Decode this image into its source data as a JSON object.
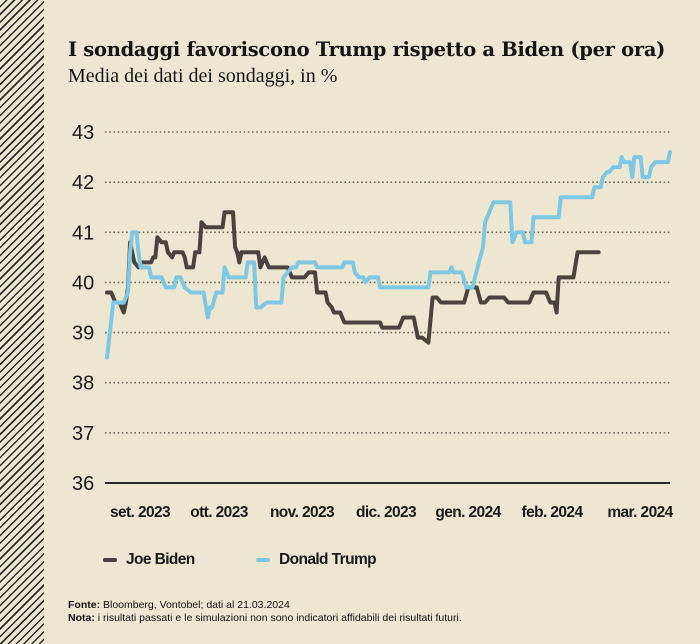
{
  "chart_data": {
    "type": "line",
    "title": "I sondaggi favoriscono Trump rispetto a Biden (per ora)",
    "subtitle": "Media dei dati dei sondaggi, in %",
    "xlabel": "",
    "ylabel": "",
    "ylim": [
      36,
      43
    ],
    "yticks": [
      "43",
      "42",
      "41",
      "40",
      "39",
      "38",
      "37",
      "36"
    ],
    "ytick_values": [
      43,
      42,
      41,
      40,
      39,
      38,
      37,
      36
    ],
    "x_unit": "days since 2023-09-01",
    "xlim": [
      0,
      206
    ],
    "xticks": [
      {
        "label": "set. 2023",
        "day": 12
      },
      {
        "label": "ott. 2023",
        "day": 41
      },
      {
        "label": "nov. 2023",
        "day": 71
      },
      {
        "label": "dic. 2023",
        "day": 102
      },
      {
        "label": "gen. 2024",
        "day": 132
      },
      {
        "label": "feb. 2024",
        "day": 163
      },
      {
        "label": "mar. 2024",
        "day": 195
      }
    ],
    "grid": "horizontal-dotted",
    "legend_position": "bottom-left",
    "series": [
      {
        "name": "Joe Biden",
        "color": "#4a4340",
        "points": [
          [
            0,
            39.8
          ],
          [
            2,
            39.8
          ],
          [
            3,
            39.7
          ],
          [
            4,
            39.6
          ],
          [
            6,
            39.6
          ],
          [
            8,
            39.4
          ],
          [
            9,
            39.6
          ],
          [
            10,
            39.9
          ],
          [
            11,
            40.8
          ],
          [
            12,
            40.6
          ],
          [
            13,
            40.4
          ],
          [
            15,
            40.3
          ],
          [
            16,
            40.4
          ],
          [
            21,
            40.4
          ],
          [
            22,
            40.5
          ],
          [
            23,
            40.5
          ],
          [
            24,
            40.9
          ],
          [
            26,
            40.8
          ],
          [
            28,
            40.8
          ],
          [
            29,
            40.6
          ],
          [
            31,
            40.5
          ],
          [
            32,
            40.6
          ],
          [
            36,
            40.6
          ],
          [
            37,
            40.5
          ],
          [
            38,
            40.3
          ],
          [
            41,
            40.3
          ],
          [
            42,
            40.6
          ],
          [
            44,
            40.6
          ],
          [
            45,
            41.2
          ],
          [
            47,
            41.1
          ],
          [
            55,
            41.1
          ],
          [
            56,
            41.4
          ],
          [
            60,
            41.4
          ],
          [
            61,
            40.7
          ],
          [
            62,
            40.6
          ],
          [
            63,
            40.4
          ],
          [
            64,
            40.6
          ],
          [
            72,
            40.6
          ],
          [
            73,
            40.3
          ],
          [
            75,
            40.5
          ],
          [
            76,
            40.4
          ],
          [
            77,
            40.3
          ],
          [
            86,
            40.3
          ],
          [
            88,
            40.1
          ],
          [
            94,
            40.1
          ],
          [
            96,
            40.2
          ],
          [
            99,
            40.2
          ],
          [
            100,
            39.8
          ],
          [
            104,
            39.8
          ],
          [
            105,
            39.6
          ],
          [
            107,
            39.5
          ],
          [
            108,
            39.4
          ],
          [
            111,
            39.4
          ],
          [
            113,
            39.2
          ],
          [
            130,
            39.2
          ],
          [
            131,
            39.1
          ],
          [
            139,
            39.1
          ],
          [
            141,
            39.3
          ],
          [
            146,
            39.3
          ],
          [
            148,
            38.9
          ],
          [
            150,
            38.9
          ],
          [
            153,
            38.8
          ],
          [
            155,
            39.7
          ],
          [
            157,
            39.7
          ],
          [
            159,
            39.6
          ],
          [
            170,
            39.6
          ],
          [
            172,
            39.9
          ],
          [
            176,
            39.9
          ],
          [
            178,
            39.6
          ],
          [
            180,
            39.6
          ],
          [
            182,
            39.7
          ],
          [
            189,
            39.7
          ],
          [
            191,
            39.6
          ],
          [
            201,
            39.6
          ],
          [
            203,
            39.8
          ],
          [
            209,
            39.8
          ],
          [
            211,
            39.6
          ],
          [
            213,
            39.6
          ],
          [
            214,
            39.4
          ],
          [
            215,
            40.1
          ],
          [
            222,
            40.1
          ],
          [
            224,
            40.6
          ],
          [
            234,
            40.6
          ]
        ]
      },
      {
        "name": "Donald Trump",
        "color": "#7ec8e3",
        "points": [
          [
            0,
            38.5
          ],
          [
            3,
            39.6
          ],
          [
            8,
            39.6
          ],
          [
            10,
            39.8
          ],
          [
            11,
            40.6
          ],
          [
            12,
            41.0
          ],
          [
            14,
            41.0
          ],
          [
            15,
            40.6
          ],
          [
            16,
            40.3
          ],
          [
            20,
            40.3
          ],
          [
            21,
            40.1
          ],
          [
            26,
            40.1
          ],
          [
            28,
            39.9
          ],
          [
            32,
            39.9
          ],
          [
            33,
            40.1
          ],
          [
            35,
            40.1
          ],
          [
            37,
            39.9
          ],
          [
            40,
            39.8
          ],
          [
            46,
            39.8
          ],
          [
            48,
            39.3
          ],
          [
            49,
            39.5
          ],
          [
            50,
            39.5
          ],
          [
            52,
            39.8
          ],
          [
            55,
            39.8
          ],
          [
            56,
            40.3
          ],
          [
            58,
            40.1
          ],
          [
            66,
            40.1
          ],
          [
            67,
            40.4
          ],
          [
            70,
            40.4
          ],
          [
            71,
            39.5
          ],
          [
            73,
            39.5
          ],
          [
            76,
            39.6
          ],
          [
            83,
            39.6
          ],
          [
            84,
            40.1
          ],
          [
            86,
            40.2
          ],
          [
            88,
            40.3
          ],
          [
            90,
            40.3
          ],
          [
            91,
            40.4
          ],
          [
            99,
            40.4
          ],
          [
            100,
            40.3
          ],
          [
            112,
            40.3
          ],
          [
            113,
            40.4
          ],
          [
            117,
            40.4
          ],
          [
            118,
            40.2
          ],
          [
            120,
            40.1
          ],
          [
            122,
            40.1
          ],
          [
            123,
            40.0
          ],
          [
            125,
            40.1
          ],
          [
            129,
            40.1
          ],
          [
            130,
            39.9
          ],
          [
            153,
            39.9
          ],
          [
            154,
            40.2
          ],
          [
            163,
            40.2
          ],
          [
            164,
            40.3
          ],
          [
            165,
            40.2
          ],
          [
            169,
            40.2
          ],
          [
            171,
            39.9
          ],
          [
            174,
            39.9
          ],
          [
            177,
            40.4
          ],
          [
            179,
            40.7
          ],
          [
            180,
            41.2
          ],
          [
            181,
            41.3
          ],
          [
            184,
            41.6
          ],
          [
            192,
            41.6
          ],
          [
            193,
            40.8
          ],
          [
            195,
            41.0
          ],
          [
            198,
            41.0
          ],
          [
            199,
            40.8
          ],
          [
            202,
            40.8
          ],
          [
            203,
            41.3
          ],
          [
            215,
            41.3
          ],
          [
            216,
            41.7
          ],
          [
            231,
            41.7
          ],
          [
            232,
            41.9
          ],
          [
            235,
            41.9
          ],
          [
            236,
            42.1
          ],
          [
            238,
            42.2
          ],
          [
            239,
            42.2
          ],
          [
            241,
            42.3
          ],
          [
            244,
            42.3
          ],
          [
            245,
            42.5
          ],
          [
            246,
            42.4
          ],
          [
            249,
            42.4
          ],
          [
            250,
            42.1
          ],
          [
            251,
            42.5
          ],
          [
            254,
            42.5
          ],
          [
            255,
            42.1
          ],
          [
            258,
            42.1
          ],
          [
            259,
            42.3
          ],
          [
            261,
            42.4
          ],
          [
            267,
            42.4
          ],
          [
            268,
            42.6
          ]
        ]
      }
    ]
  },
  "footer": {
    "source_label": "Fonte:",
    "source_text": " Bloomberg, Vontobel; dati al 21.03.2024",
    "note_label": "Nota:",
    "note_text": " i risultati passati e le simulazioni non sono indicatori affidabili dei risultati futuri."
  }
}
